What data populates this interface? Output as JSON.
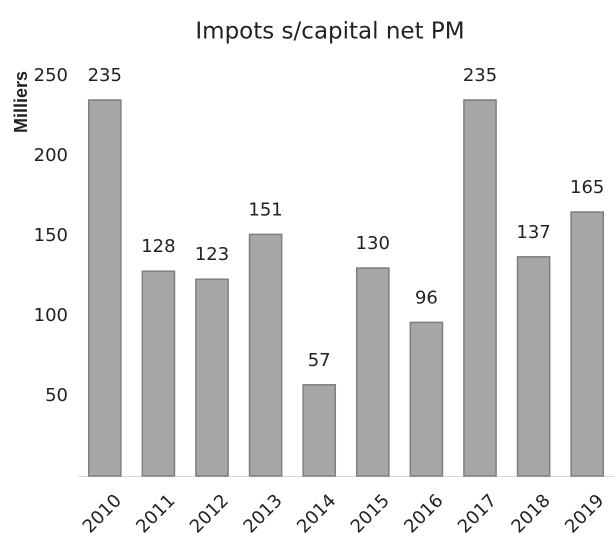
{
  "chart_data": {
    "type": "bar",
    "title": "Impots s/capital net PM",
    "y_label": "Milliers",
    "categories": [
      "2010",
      "2011",
      "2012",
      "2013",
      "2014",
      "2015",
      "2016",
      "2017",
      "2018",
      "2019"
    ],
    "values": [
      235,
      128,
      123,
      151,
      57,
      130,
      96,
      235,
      137,
      165
    ],
    "color": "#a6a6a6",
    "ylim": [
      0,
      250
    ],
    "yticks": [
      50,
      100,
      150,
      200,
      250
    ],
    "grid": false
  }
}
